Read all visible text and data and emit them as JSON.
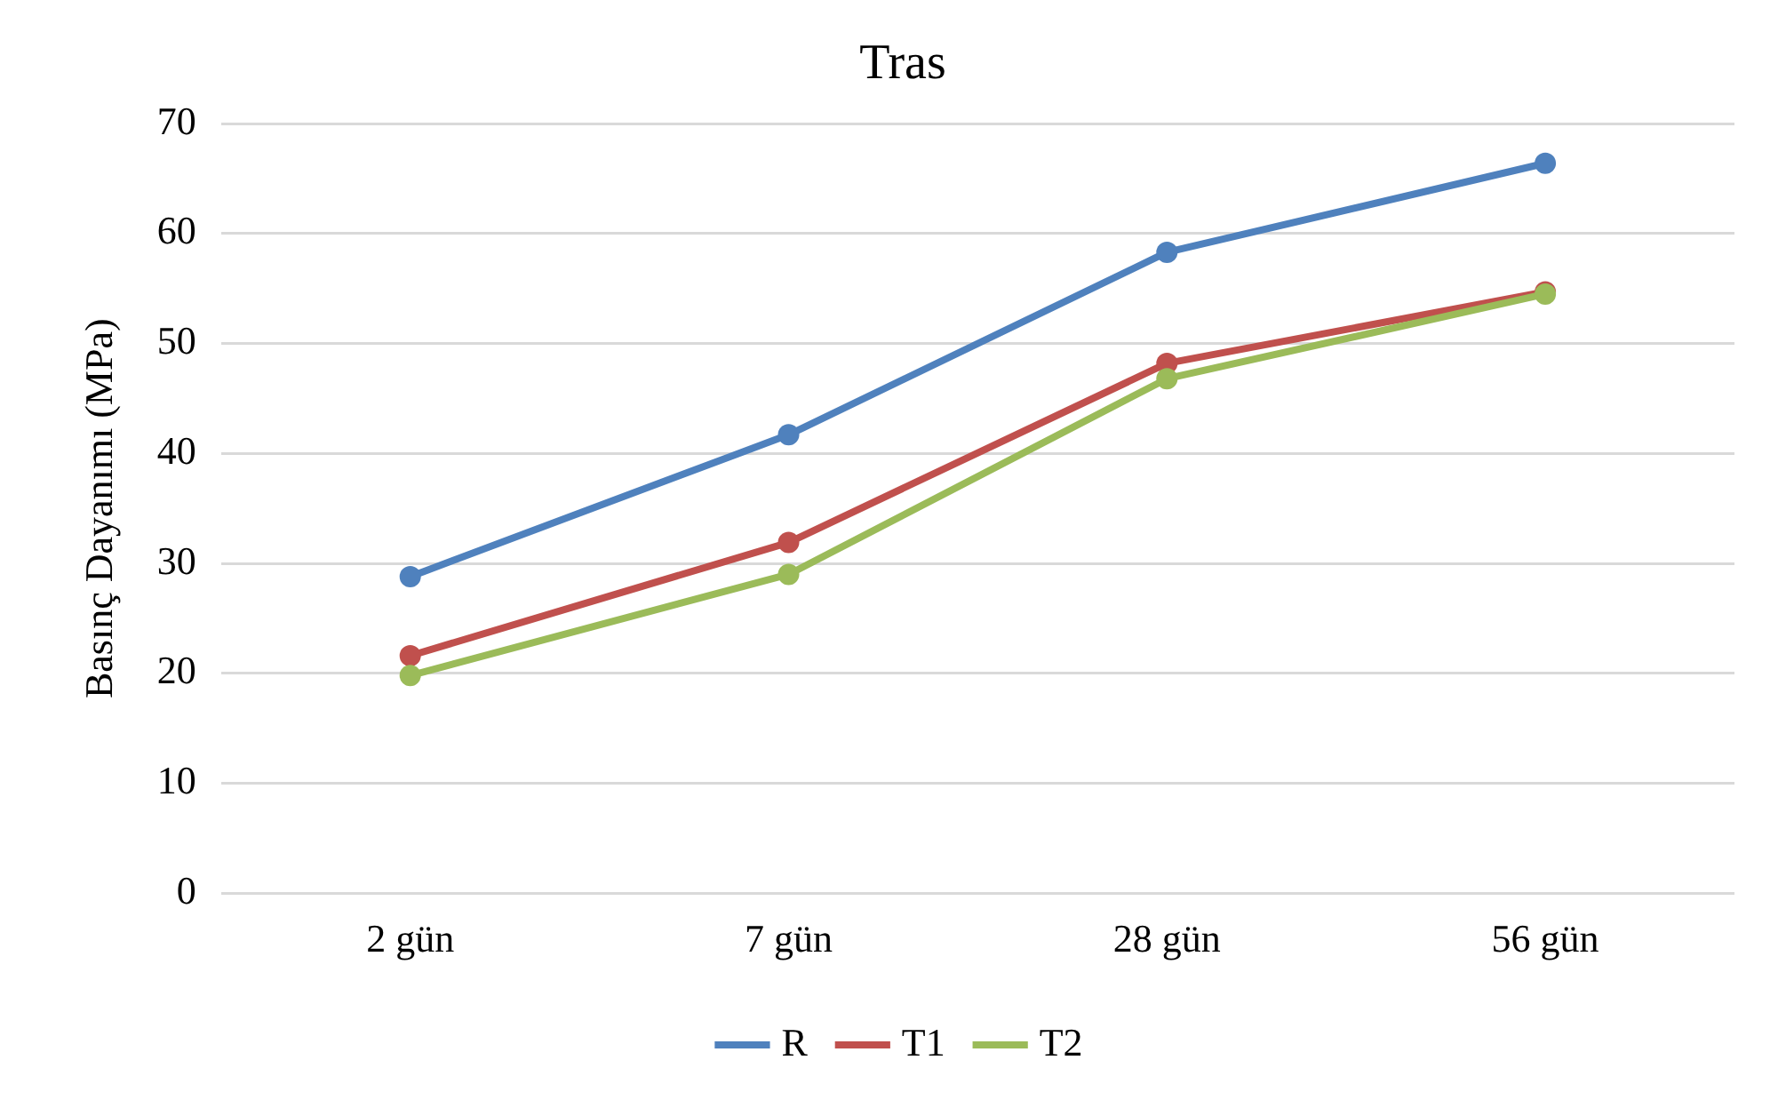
{
  "chart_data": {
    "type": "line",
    "title": "Tras",
    "ylabel": "Basınç Dayanımı (MPa)",
    "categories": [
      "2 gün",
      "7 gün",
      "28 gün",
      "56 gün"
    ],
    "series": [
      {
        "name": "R",
        "color": "#4f81bd",
        "values": [
          28.8,
          41.7,
          58.3,
          66.4
        ]
      },
      {
        "name": "T1",
        "color": "#c0504d",
        "values": [
          21.6,
          31.9,
          48.2,
          54.7
        ]
      },
      {
        "name": "T2",
        "color": "#9bbb59",
        "values": [
          19.8,
          29.0,
          46.8,
          54.5
        ]
      }
    ],
    "ylim": [
      0,
      70
    ],
    "yticks": [
      0,
      10,
      20,
      30,
      40,
      50,
      60,
      70
    ],
    "grid": "y",
    "legend": "bottom",
    "marker": "circle",
    "line_style": "solid"
  }
}
